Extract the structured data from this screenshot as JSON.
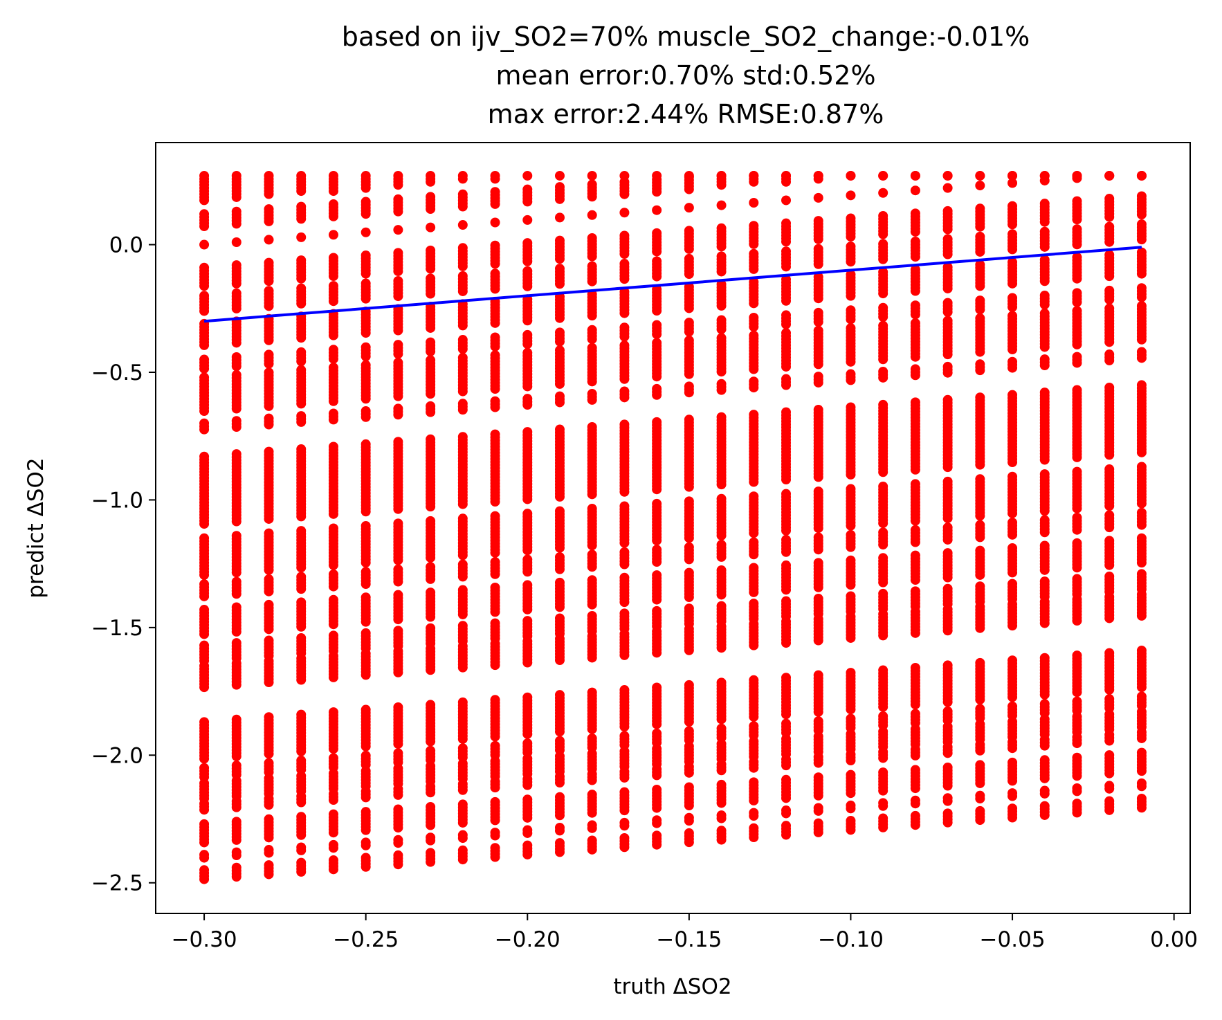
{
  "chart_data": {
    "type": "scatter",
    "title_lines": [
      "based on ijv_SO2=70% muscle_SO2_change:-0.01%",
      "mean error:0.70% std:0.52%",
      "max error:2.44% RMSE:0.87%"
    ],
    "xlabel": "truth ΔSO2",
    "ylabel": "predict ΔSO2",
    "xlim": [
      -0.315,
      0.005
    ],
    "ylim": [
      -2.62,
      0.4
    ],
    "xticks": [
      {
        "value": -0.3,
        "label": "−0.30"
      },
      {
        "value": -0.25,
        "label": "−0.25"
      },
      {
        "value": -0.2,
        "label": "−0.20"
      },
      {
        "value": -0.15,
        "label": "−0.15"
      },
      {
        "value": -0.1,
        "label": "−0.10"
      },
      {
        "value": -0.05,
        "label": "−0.05"
      },
      {
        "value": 0.0,
        "label": "0.00"
      }
    ],
    "yticks": [
      {
        "value": 0.0,
        "label": "0.0"
      },
      {
        "value": -0.5,
        "label": "−0.5"
      },
      {
        "value": -1.0,
        "label": "−1.0"
      },
      {
        "value": -1.5,
        "label": "−1.5"
      },
      {
        "value": -2.0,
        "label": "−2.0"
      },
      {
        "value": -2.5,
        "label": "−2.5"
      }
    ],
    "grid": false,
    "scatter_series": {
      "color": "#ff0000",
      "x_start": -0.3,
      "x_step": 0.01,
      "x_count": 30,
      "y_segments_first_column": [
        [
          0.27,
          0.17
        ],
        [
          0.12,
          0.07
        ],
        [
          0.0,
          0.0
        ],
        [
          -0.09,
          -0.17
        ],
        [
          -0.2,
          -0.26
        ],
        [
          -0.31,
          -0.4
        ],
        [
          -0.45,
          -0.49
        ],
        [
          -0.52,
          -0.66
        ],
        [
          -0.7,
          -0.73
        ],
        [
          -0.83,
          -1.1
        ],
        [
          -1.15,
          -1.3
        ],
        [
          -1.33,
          -1.38
        ],
        [
          -1.43,
          -1.53
        ],
        [
          -1.57,
          -1.63
        ],
        [
          -1.65,
          -1.74
        ],
        [
          -1.87,
          -2.02
        ],
        [
          -2.05,
          -2.09
        ],
        [
          -2.11,
          -2.17
        ],
        [
          -2.19,
          -2.22
        ],
        [
          -2.27,
          -2.35
        ],
        [
          -2.39,
          -2.41
        ],
        [
          -2.45,
          -2.49
        ]
      ],
      "bottom_segments_last_column": [
        [
          -1.84,
          -1.96
        ],
        [
          -2.2,
          -2.25
        ],
        [
          -2.4,
          -2.44
        ]
      ],
      "column_offset_last": 0.28
    },
    "reference_line": {
      "color": "#0000ff",
      "x": [
        -0.3,
        -0.01
      ],
      "y": [
        -0.3,
        -0.01
      ]
    }
  }
}
